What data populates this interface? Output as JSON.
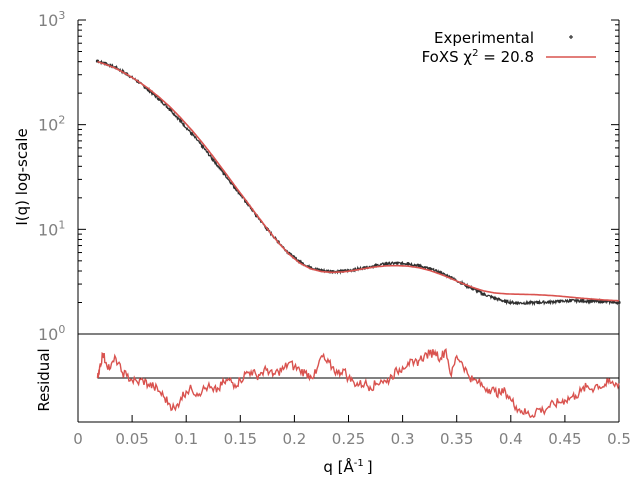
{
  "chart_data": [
    {
      "type": "scatter",
      "panel": "main",
      "ylabel": "I(q) log-scale",
      "yscale": "log",
      "ylim": [
        1,
        1000
      ],
      "xlim": [
        0,
        0.5
      ],
      "y_ticks": [
        {
          "value": 1,
          "base": "10",
          "exp": "0"
        },
        {
          "value": 10,
          "base": "10",
          "exp": "1"
        },
        {
          "value": 100,
          "base": "10",
          "exp": "2"
        },
        {
          "value": 1000,
          "base": "10",
          "exp": "3"
        }
      ],
      "grid": false,
      "legend_position": "top-right",
      "series": [
        {
          "name": "Experimental",
          "style": "points",
          "color": "#303030",
          "x": [
            0.018,
            0.025,
            0.035,
            0.045,
            0.055,
            0.065,
            0.075,
            0.085,
            0.095,
            0.105,
            0.115,
            0.125,
            0.135,
            0.145,
            0.155,
            0.165,
            0.175,
            0.185,
            0.195,
            0.205,
            0.215,
            0.225,
            0.235,
            0.245,
            0.255,
            0.265,
            0.275,
            0.285,
            0.295,
            0.305,
            0.315,
            0.325,
            0.335,
            0.345,
            0.355,
            0.365,
            0.375,
            0.385,
            0.395,
            0.405,
            0.415,
            0.425,
            0.435,
            0.445,
            0.455,
            0.465,
            0.475,
            0.485,
            0.495,
            0.5
          ],
          "y": [
            405,
            385,
            350,
            305,
            260,
            215,
            175,
            140,
            108,
            82,
            62,
            46,
            34,
            25,
            18.5,
            13.5,
            10.0,
            7.6,
            5.9,
            4.9,
            4.3,
            4.05,
            3.95,
            3.98,
            4.1,
            4.3,
            4.5,
            4.7,
            4.75,
            4.7,
            4.5,
            4.2,
            3.85,
            3.45,
            3.05,
            2.7,
            2.4,
            2.2,
            2.05,
            1.98,
            1.98,
            2.0,
            2.02,
            2.05,
            2.08,
            2.08,
            2.06,
            2.04,
            2.02,
            2.0
          ]
        },
        {
          "name": "FoXS χ",
          "name_superscript": "2",
          "name_suffix": " = 20.8",
          "style": "line",
          "color": "#d9534f",
          "x": [
            0.018,
            0.025,
            0.035,
            0.045,
            0.055,
            0.065,
            0.075,
            0.085,
            0.095,
            0.105,
            0.115,
            0.125,
            0.135,
            0.145,
            0.155,
            0.165,
            0.175,
            0.185,
            0.195,
            0.205,
            0.215,
            0.225,
            0.235,
            0.245,
            0.255,
            0.265,
            0.275,
            0.285,
            0.295,
            0.305,
            0.315,
            0.325,
            0.335,
            0.345,
            0.355,
            0.365,
            0.375,
            0.385,
            0.395,
            0.405,
            0.415,
            0.425,
            0.435,
            0.445,
            0.455,
            0.465,
            0.475,
            0.485,
            0.495,
            0.5
          ],
          "y": [
            400,
            378,
            345,
            303,
            262,
            222,
            183,
            148,
            116,
            89,
            67,
            49.5,
            36,
            26,
            19,
            13.8,
            10.1,
            7.5,
            5.8,
            4.75,
            4.2,
            3.95,
            3.88,
            3.92,
            4.05,
            4.22,
            4.38,
            4.48,
            4.5,
            4.45,
            4.3,
            4.05,
            3.72,
            3.38,
            3.05,
            2.78,
            2.58,
            2.47,
            2.42,
            2.4,
            2.39,
            2.37,
            2.34,
            2.3,
            2.25,
            2.2,
            2.16,
            2.12,
            2.09,
            2.08
          ]
        }
      ]
    },
    {
      "type": "line",
      "panel": "residual",
      "ylabel": "Residual",
      "xlabel": "q [Å",
      "xlabel_superscript": "-1",
      "xlabel_suffix": "]",
      "xlim": [
        0,
        0.5
      ],
      "x_ticks": [
        "0",
        "0.05",
        "0.1",
        "0.15",
        "0.2",
        "0.25",
        "0.3",
        "0.35",
        "0.4",
        "0.45",
        "0.5"
      ],
      "ylim": [
        -1,
        1
      ],
      "grid": false,
      "series": [
        {
          "name": "",
          "style": "line",
          "color": "#d9534f",
          "x": [
            0.018,
            0.02,
            0.023,
            0.026,
            0.03,
            0.035,
            0.04,
            0.045,
            0.05,
            0.055,
            0.06,
            0.065,
            0.07,
            0.075,
            0.08,
            0.085,
            0.09,
            0.095,
            0.1,
            0.105,
            0.11,
            0.115,
            0.12,
            0.125,
            0.13,
            0.135,
            0.14,
            0.145,
            0.15,
            0.155,
            0.16,
            0.165,
            0.17,
            0.175,
            0.18,
            0.185,
            0.19,
            0.195,
            0.2,
            0.205,
            0.21,
            0.215,
            0.22,
            0.225,
            0.23,
            0.235,
            0.24,
            0.245,
            0.25,
            0.255,
            0.26,
            0.265,
            0.27,
            0.275,
            0.28,
            0.285,
            0.29,
            0.295,
            0.3,
            0.305,
            0.31,
            0.315,
            0.32,
            0.325,
            0.33,
            0.335,
            0.34,
            0.345,
            0.35,
            0.355,
            0.36,
            0.365,
            0.37,
            0.375,
            0.38,
            0.385,
            0.39,
            0.395,
            0.4,
            0.405,
            0.41,
            0.415,
            0.42,
            0.425,
            0.43,
            0.435,
            0.44,
            0.445,
            0.45,
            0.455,
            0.46,
            0.465,
            0.47,
            0.475,
            0.48,
            0.485,
            0.49,
            0.495,
            0.5
          ],
          "y": [
            0.0,
            0.25,
            0.55,
            0.35,
            0.22,
            0.45,
            0.15,
            0.05,
            -0.05,
            -0.1,
            -0.05,
            -0.15,
            -0.2,
            -0.3,
            -0.45,
            -0.6,
            -0.72,
            -0.45,
            -0.3,
            -0.25,
            -0.35,
            -0.28,
            -0.2,
            -0.3,
            -0.25,
            -0.1,
            -0.05,
            -0.15,
            -0.05,
            0.1,
            0.15,
            0.05,
            0.12,
            0.2,
            0.05,
            0.15,
            0.2,
            0.35,
            0.25,
            0.18,
            0.12,
            0.05,
            0.1,
            0.5,
            0.35,
            0.25,
            0.1,
            0.2,
            0.0,
            -0.1,
            -0.15,
            -0.12,
            -0.2,
            -0.15,
            -0.05,
            -0.1,
            0.05,
            0.15,
            0.25,
            0.35,
            0.3,
            0.4,
            0.5,
            0.55,
            0.6,
            0.45,
            0.65,
            0.05,
            0.5,
            0.35,
            0.1,
            -0.05,
            -0.1,
            -0.2,
            -0.25,
            -0.3,
            -0.35,
            -0.3,
            -0.5,
            -0.65,
            -0.75,
            -0.8,
            -0.85,
            -0.7,
            -0.75,
            -0.65,
            -0.6,
            -0.55,
            -0.5,
            -0.45,
            -0.4,
            -0.3,
            -0.2,
            -0.25,
            -0.15,
            -0.2,
            -0.1,
            -0.15,
            -0.12
          ]
        },
        {
          "name": "",
          "style": "reference",
          "color": "#000000",
          "x": [
            0.018,
            0.5
          ],
          "y": [
            0,
            0
          ]
        }
      ]
    }
  ]
}
